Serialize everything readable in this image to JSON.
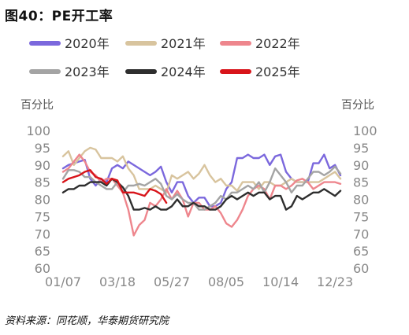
{
  "figure": {
    "title": "图40：PE开工率",
    "source": "资料来源：同花顺，华泰期货研究院"
  },
  "chart_data": {
    "type": "line",
    "y_unit_left": "百分比",
    "y_unit_right": "百分比",
    "ylim": [
      60,
      100
    ],
    "yticks": [
      60,
      65,
      70,
      75,
      80,
      85,
      90,
      95,
      100
    ],
    "xlim": [
      1,
      52
    ],
    "xtick_labels": [
      "01/07",
      "03/18",
      "05/27",
      "08/05",
      "10/14",
      "12/23"
    ],
    "xtick_weeks": [
      1,
      11,
      21,
      31,
      41,
      51
    ],
    "grid": false,
    "legend_position": "top",
    "series": [
      {
        "name": "2020年",
        "color": "#7b68dd",
        "x": [
          1,
          2,
          3,
          4,
          5,
          6,
          7,
          8,
          9,
          10,
          11,
          12,
          13,
          14,
          15,
          16,
          17,
          18,
          19,
          20,
          21,
          22,
          23,
          24,
          25,
          26,
          27,
          28,
          29,
          30,
          31,
          32,
          33,
          34,
          35,
          36,
          37,
          38,
          39,
          40,
          41,
          42,
          43,
          44,
          45,
          46,
          47,
          48,
          49,
          50,
          51,
          52
        ],
        "values": [
          89,
          90,
          90.5,
          91,
          91.5,
          86,
          84,
          86,
          85,
          89,
          90,
          89,
          91,
          90,
          89,
          88,
          87,
          88,
          89.5,
          85,
          82,
          85,
          85,
          81,
          79,
          80.5,
          80.5,
          78,
          78,
          79,
          83,
          85,
          92,
          92,
          93,
          92,
          92,
          93,
          90,
          92.5,
          93,
          88,
          86,
          85,
          85,
          85,
          90.5,
          90.5,
          93,
          89,
          90,
          87
        ]
      },
      {
        "name": "2021年",
        "color": "#d8c49e",
        "x": [
          1,
          2,
          3,
          4,
          5,
          6,
          7,
          8,
          9,
          10,
          11,
          12,
          13,
          14,
          15,
          16,
          17,
          18,
          19,
          20,
          21,
          22,
          23,
          24,
          25,
          26,
          27,
          28,
          29,
          30,
          31,
          32,
          33,
          34,
          35,
          36,
          37,
          38,
          39,
          40,
          41,
          42,
          43,
          44,
          45,
          46,
          47,
          48,
          49,
          50,
          51,
          52
        ],
        "values": [
          92.5,
          94,
          90,
          92,
          94,
          95,
          94.5,
          92,
          92,
          92,
          91,
          92.5,
          89,
          87,
          83,
          83,
          83,
          84,
          83,
          82,
          87,
          86,
          87,
          88,
          86,
          87.5,
          90,
          87,
          85,
          86,
          84,
          84,
          82.5,
          85,
          85,
          85,
          83,
          85,
          85,
          84,
          84,
          85,
          86,
          85,
          85,
          85,
          85,
          85,
          86,
          87,
          88,
          86
        ]
      },
      {
        "name": "2022年",
        "color": "#ee868d",
        "x": [
          1,
          2,
          3,
          4,
          5,
          6,
          7,
          8,
          9,
          10,
          11,
          12,
          13,
          14,
          15,
          16,
          17,
          18,
          19,
          20,
          21,
          22,
          23,
          24,
          25,
          26,
          27,
          28,
          29,
          30,
          31,
          32,
          33,
          34,
          35,
          36,
          37,
          38,
          39,
          40,
          41,
          42,
          43,
          44,
          45,
          46,
          47,
          48,
          49,
          50,
          51,
          52
        ],
        "values": [
          88,
          89,
          91,
          93,
          91,
          88,
          87,
          85,
          86,
          86,
          84,
          82,
          77,
          69.5,
          72.5,
          74,
          79,
          78,
          80,
          83,
          80,
          82.5,
          80,
          75,
          79,
          79,
          77,
          77,
          78,
          76,
          73,
          72,
          74,
          77,
          81,
          83,
          84,
          83,
          80,
          84,
          84,
          83,
          84,
          85.5,
          86,
          85,
          83,
          84,
          85,
          85,
          85,
          84.5
        ]
      },
      {
        "name": "2023年",
        "color": "#a4a4a4",
        "x": [
          1,
          2,
          3,
          4,
          5,
          6,
          7,
          8,
          9,
          10,
          11,
          12,
          13,
          14,
          15,
          16,
          17,
          18,
          19,
          20,
          21,
          22,
          23,
          24,
          25,
          26,
          27,
          28,
          29,
          30,
          31,
          32,
          33,
          34,
          35,
          36,
          37,
          38,
          39,
          40,
          41,
          42,
          43,
          44,
          45,
          46,
          47,
          48,
          49,
          50,
          51,
          52
        ],
        "values": [
          86,
          88.5,
          88.5,
          88,
          86.5,
          86.5,
          85,
          84,
          83,
          83,
          85,
          82,
          84,
          84,
          84.5,
          84,
          85,
          86,
          84.5,
          81,
          80,
          81.5,
          80,
          79,
          79,
          77,
          77,
          78,
          79,
          81,
          80,
          82,
          82,
          83,
          84,
          83,
          85,
          82,
          85,
          89,
          87,
          85,
          82,
          84,
          84,
          86,
          88,
          88,
          87,
          88,
          89.5,
          87.5
        ]
      },
      {
        "name": "2024年",
        "color": "#2e2e2e",
        "x": [
          1,
          2,
          3,
          4,
          5,
          6,
          7,
          8,
          9,
          10,
          11,
          12,
          13,
          14,
          15,
          16,
          17,
          18,
          19,
          20,
          21,
          22,
          23,
          24,
          25,
          26,
          27,
          28,
          29,
          30,
          31,
          32,
          33,
          34,
          35,
          36,
          37,
          38,
          39,
          40,
          41,
          42,
          43,
          44,
          45,
          46,
          47,
          48,
          49,
          50,
          51,
          52
        ],
        "values": [
          82,
          83,
          83,
          84,
          84,
          85,
          85,
          85,
          84,
          86,
          85,
          83.5,
          81,
          77,
          77,
          77.5,
          77,
          78,
          77,
          77,
          78,
          80,
          78,
          78,
          79,
          78,
          78,
          77,
          77,
          78,
          80,
          81,
          80,
          81,
          82,
          81,
          82,
          82,
          80,
          81,
          81,
          77,
          78,
          81,
          80,
          81,
          82,
          82,
          83,
          82,
          81,
          82.5
        ]
      },
      {
        "name": "2025年",
        "color": "#d8141a",
        "x": [
          1,
          2,
          3,
          4,
          5,
          6,
          7,
          8,
          9,
          10,
          11,
          12,
          13,
          14,
          15,
          16,
          17,
          18,
          19,
          20
        ],
        "values": [
          85,
          86,
          86.5,
          87,
          88,
          88.5,
          86.5,
          86,
          84.5,
          86,
          85.5,
          82,
          82,
          82,
          81.5,
          81,
          83,
          82.5,
          81.5,
          79
        ]
      }
    ]
  }
}
